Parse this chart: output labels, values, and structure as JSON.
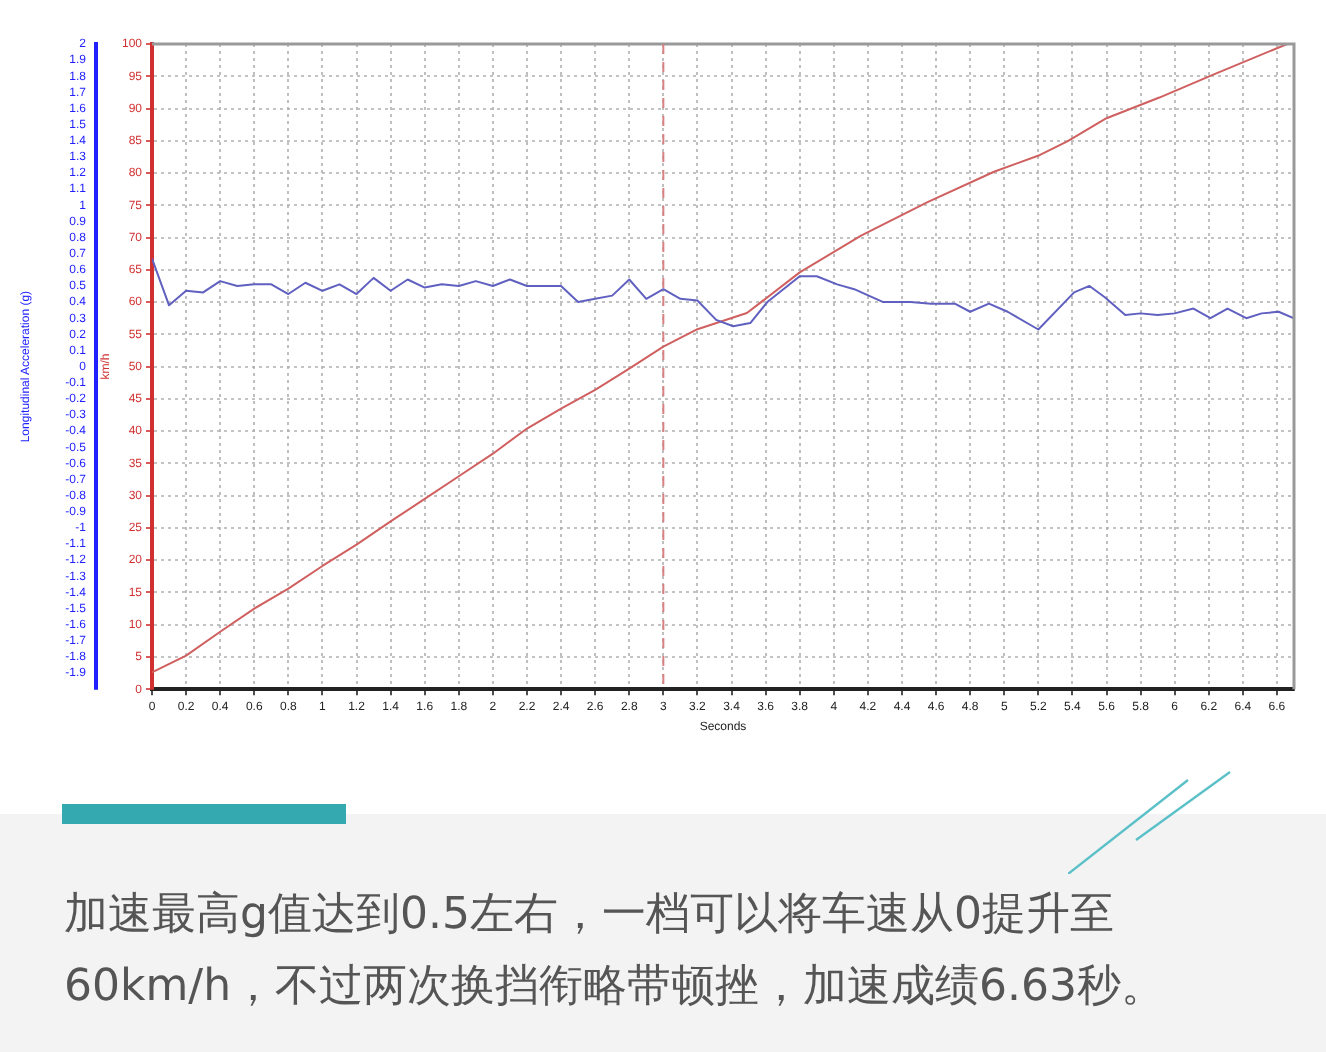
{
  "chart_data": {
    "type": "line",
    "xlabel": "Seconds",
    "ylabel": "Longitudinal Acceleration (g)",
    "y2label": "km/h",
    "xlim": [
      0,
      6.7
    ],
    "xticks": [
      0,
      0.2,
      0.4,
      0.6,
      0.8,
      1,
      1.2,
      1.4,
      1.6,
      1.8,
      2,
      2.2,
      2.4,
      2.6,
      2.8,
      3,
      3.2,
      3.4,
      3.6,
      3.8,
      4,
      4.2,
      4.4,
      4.6,
      4.8,
      5,
      5.2,
      5.4,
      5.6,
      5.8,
      6,
      6.2,
      6.4,
      6.6
    ],
    "ylim": [
      -2,
      2
    ],
    "yticks": [
      -1.9,
      -1.8,
      -1.7,
      -1.6,
      -1.5,
      -1.4,
      -1.3,
      -1.2,
      -1.1,
      -1,
      -0.9,
      -0.8,
      -0.7,
      -0.6,
      -0.5,
      -0.4,
      -0.3,
      -0.2,
      -0.1,
      0,
      0.1,
      0.2,
      0.3,
      0.4,
      0.5,
      0.6,
      0.7,
      0.8,
      0.9,
      1,
      1.1,
      1.2,
      1.3,
      1.4,
      1.5,
      1.6,
      1.7,
      1.8,
      1.9,
      2
    ],
    "y2lim": [
      0,
      100
    ],
    "y2ticks": [
      0,
      5,
      10,
      15,
      20,
      25,
      30,
      35,
      40,
      45,
      50,
      55,
      60,
      65,
      70,
      75,
      80,
      85,
      90,
      95,
      100
    ],
    "grid": true,
    "legend": false,
    "marker": "none",
    "line_style": "solid",
    "ref_lines": [
      {
        "axis": "x",
        "value": 3,
        "color": "#d98080",
        "line_style": "dashed"
      }
    ],
    "series": [
      {
        "color": "#6060c0",
        "axis": "y",
        "x": [
          0,
          0.1,
          0.2,
          0.3,
          0.4,
          0.5,
          0.6,
          0.7,
          0.8,
          0.9,
          1,
          1.1,
          1.2,
          1.3,
          1.4,
          1.5,
          1.6,
          1.7,
          1.8,
          1.9,
          2,
          2.1,
          2.2,
          2.4,
          2.5,
          2.6,
          2.7,
          2.8,
          2.9,
          3,
          3.1,
          3.2,
          3.31,
          3.41,
          3.51,
          3.61,
          3.8,
          3.9,
          4.02,
          4.12,
          4.29,
          4.45,
          4.57,
          4.71,
          4.8,
          4.91,
          5.02,
          5.2,
          5.41,
          5.5,
          5.59,
          5.71,
          5.8,
          5.9,
          6,
          6.11,
          6.21,
          6.31,
          6.42,
          6.51,
          6.61,
          6.7
        ],
        "values": [
          0.67,
          0.38,
          0.47,
          0.46,
          0.53,
          0.5,
          0.51,
          0.51,
          0.45,
          0.52,
          0.47,
          0.51,
          0.45,
          0.55,
          0.47,
          0.54,
          0.49,
          0.51,
          0.5,
          0.53,
          0.5,
          0.54,
          0.5,
          0.5,
          0.4,
          0.42,
          0.44,
          0.54,
          0.42,
          0.48,
          0.42,
          0.41,
          0.29,
          0.25,
          0.27,
          0.4,
          0.56,
          0.56,
          0.51,
          0.48,
          0.4,
          0.4,
          0.39,
          0.39,
          0.34,
          0.39,
          0.34,
          0.23,
          0.46,
          0.5,
          0.43,
          0.32,
          0.33,
          0.32,
          0.33,
          0.36,
          0.3,
          0.36,
          0.3,
          0.33,
          0.34,
          0.3
        ]
      },
      {
        "color": "#d06060",
        "axis": "y2",
        "x": [
          0,
          0.2,
          0.4,
          0.6,
          0.8,
          1,
          1.2,
          1.4,
          1.6,
          1.8,
          2,
          2.2,
          2.4,
          2.6,
          2.8,
          3,
          3.2,
          3.49,
          3.8,
          4.16,
          4.55,
          4.94,
          5.21,
          5.37,
          5.6,
          5.91,
          6.23,
          6.66
        ],
        "values": [
          2.6,
          5.2,
          8.9,
          12.5,
          15.6,
          19.1,
          22.4,
          26,
          29.5,
          33,
          36.5,
          40.4,
          43.5,
          46.4,
          49.7,
          53.1,
          55.8,
          58.3,
          64.6,
          70.3,
          75.5,
          80.2,
          82.8,
          84.9,
          88.5,
          91.7,
          95.3,
          100
        ]
      }
    ],
    "annotations": [
      "加速最高g值达到0.5左右，一档可以将车速从0提升至60km/h，不过两次换挡衔略带顿挫，加速成绩6.63秒。"
    ]
  }
}
